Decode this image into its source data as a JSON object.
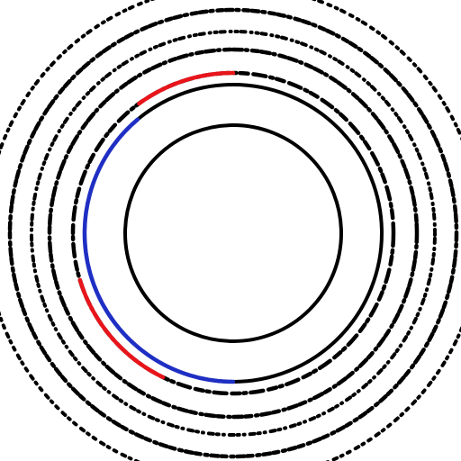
{
  "figure": {
    "background": "#ffffff",
    "ring_color": "#000000",
    "ring_count": 7,
    "highlight_colors": {
      "red": "#e8151b",
      "blue": "#1f2fc4"
    },
    "highlighted_arcs": [
      {
        "color_key": "red",
        "ring_index": 2
      },
      {
        "color_key": "blue",
        "ring_index": 1
      },
      {
        "color_key": "red",
        "ring_index": 2
      }
    ]
  }
}
